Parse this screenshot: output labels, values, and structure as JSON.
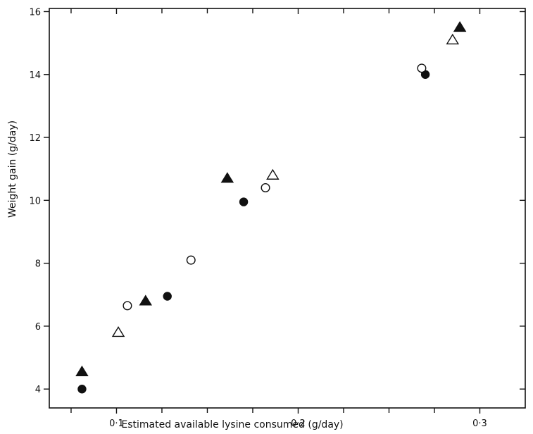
{
  "chart_data": {
    "type": "scatter",
    "title": "",
    "xlabel": "Estimated available lysine consumed  (g/day)",
    "ylabel": "Weight gain (g/day)",
    "xlim": [
      0.063,
      0.325
    ],
    "ylim": [
      3.4,
      16.1
    ],
    "x_ticks": [
      0.1,
      0.2,
      0.3
    ],
    "x_tick_labels": [
      "0·1",
      "0·2",
      "0·3"
    ],
    "x_minor_ticks": [
      0.075,
      0.125,
      0.15,
      0.175,
      0.225,
      0.25,
      0.275
    ],
    "y_ticks": [
      4,
      6,
      8,
      10,
      12,
      14,
      16
    ],
    "y_tick_labels": [
      "4",
      "6",
      "8",
      "10",
      "12",
      "14",
      "16"
    ],
    "grid": false,
    "series": [
      {
        "marker": "filled-circle",
        "points": [
          [
            0.081,
            4.0
          ],
          [
            0.128,
            6.95
          ],
          [
            0.17,
            9.95
          ],
          [
            0.27,
            14.0
          ]
        ]
      },
      {
        "marker": "open-circle",
        "points": [
          [
            0.106,
            6.65
          ],
          [
            0.141,
            8.1
          ],
          [
            0.182,
            10.4
          ],
          [
            0.268,
            14.2
          ]
        ]
      },
      {
        "marker": "filled-triangle",
        "points": [
          [
            0.081,
            4.55
          ],
          [
            0.116,
            6.8
          ],
          [
            0.161,
            10.7
          ],
          [
            0.289,
            15.5
          ]
        ]
      },
      {
        "marker": "open-triangle",
        "points": [
          [
            0.101,
            5.8
          ],
          [
            0.186,
            10.8
          ],
          [
            0.285,
            15.1
          ]
        ]
      }
    ]
  }
}
